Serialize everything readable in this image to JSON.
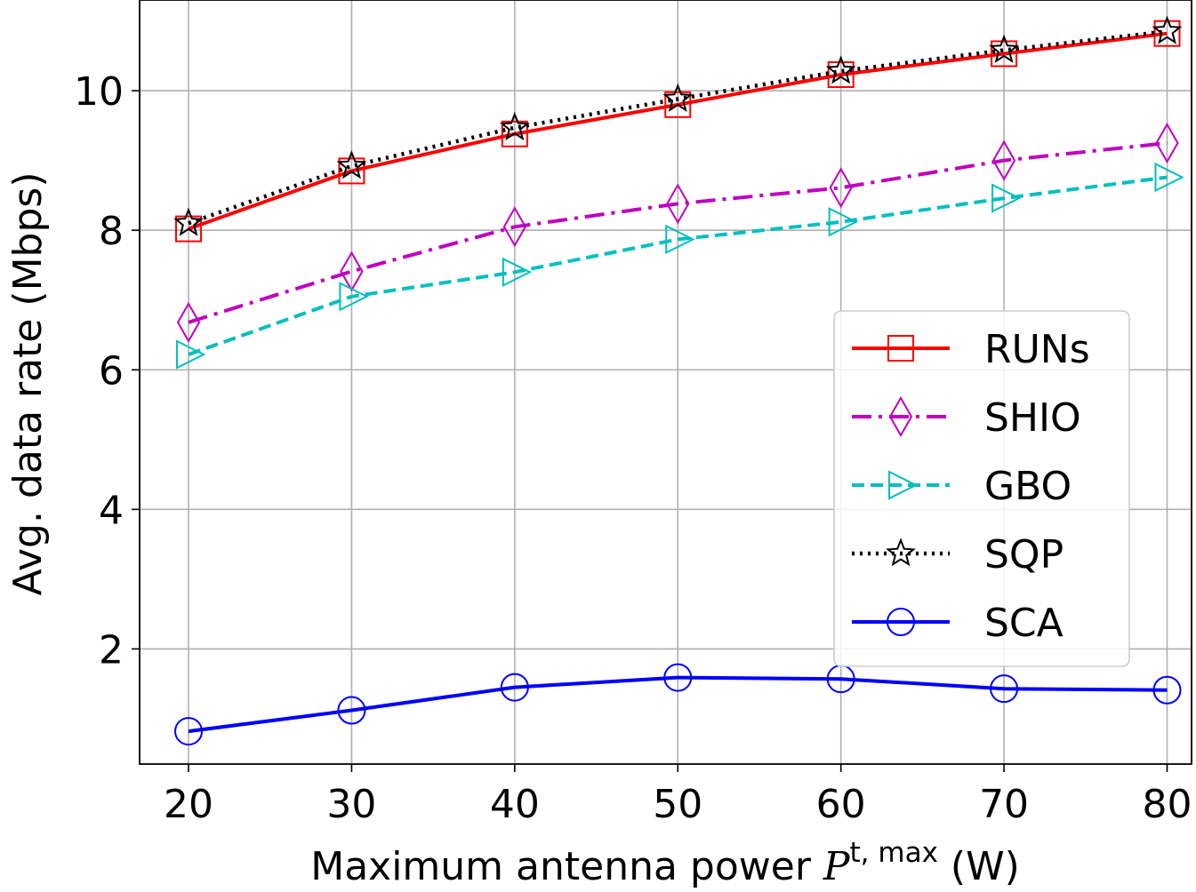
{
  "chart_data": {
    "type": "line",
    "x": [
      20,
      30,
      40,
      50,
      60,
      70,
      80
    ],
    "xlabel_main": "Maximum antenna power ",
    "xlabel_symbol": "P",
    "xlabel_superscript": "t, max",
    "xlabel_unit": " (W)",
    "ylabel": "Avg. data rate (Mbps)",
    "xlim": [
      17,
      81.5
    ],
    "ylim": [
      0.35,
      11.3
    ],
    "xticks": [
      "20",
      "30",
      "40",
      "50",
      "60",
      "70",
      "80"
    ],
    "yticks": [
      {
        "v": 2,
        "label": "2"
      },
      {
        "v": 4,
        "label": "4"
      },
      {
        "v": 6,
        "label": "6"
      },
      {
        "v": 8,
        "label": "8"
      },
      {
        "v": 10,
        "label": "10"
      }
    ],
    "grid": true,
    "legend_position": "center-right",
    "series": [
      {
        "name": "RUNs",
        "color": "#ff0000",
        "dash": "",
        "marker": "square",
        "values": [
          8.02,
          8.85,
          9.38,
          9.8,
          10.23,
          10.53,
          10.82
        ]
      },
      {
        "name": "SHIO",
        "color": "#bf00bf",
        "dash": "22,8,4,8",
        "marker": "thin-diamond",
        "values": [
          6.68,
          7.41,
          8.05,
          8.38,
          8.61,
          9.0,
          9.25
        ]
      },
      {
        "name": "GBO",
        "color": "#00bfbf",
        "dash": "14,7",
        "marker": "triangle-right",
        "values": [
          6.22,
          7.05,
          7.4,
          7.87,
          8.12,
          8.46,
          8.76
        ]
      },
      {
        "name": "SQP",
        "color": "#000000",
        "dash": "3,6",
        "marker": "star",
        "values": [
          8.1,
          8.92,
          9.47,
          9.88,
          10.28,
          10.58,
          10.85
        ]
      },
      {
        "name": "SCA",
        "color": "#0000ff",
        "dash": "",
        "marker": "circle",
        "values": [
          0.82,
          1.12,
          1.45,
          1.59,
          1.57,
          1.43,
          1.41
        ]
      }
    ]
  }
}
